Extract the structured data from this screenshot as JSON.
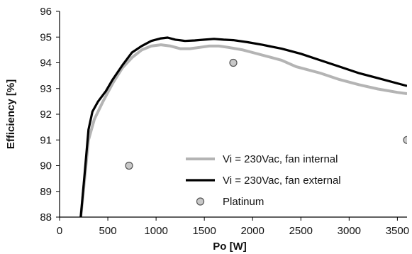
{
  "chart_data": {
    "type": "line",
    "xlabel": "Po [W]",
    "ylabel": "Efficiency [%]",
    "xlim": [
      0,
      3600
    ],
    "ylim": [
      88,
      96
    ],
    "xticks": [
      0,
      500,
      1000,
      1500,
      2000,
      2500,
      3000,
      3500
    ],
    "yticks": [
      88,
      89,
      90,
      91,
      92,
      93,
      94,
      95,
      96
    ],
    "grid": false,
    "legend_position": "bottom-center",
    "series": [
      {
        "name": "Vi = 230Vac, fan internal",
        "kind": "line",
        "color": "#b4b4b4",
        "points": [
          [
            220,
            88
          ],
          [
            260,
            89.5
          ],
          [
            300,
            91
          ],
          [
            360,
            91.8
          ],
          [
            450,
            92.5
          ],
          [
            550,
            93.2
          ],
          [
            650,
            93.8
          ],
          [
            750,
            94.2
          ],
          [
            850,
            94.5
          ],
          [
            950,
            94.65
          ],
          [
            1050,
            94.7
          ],
          [
            1150,
            94.65
          ],
          [
            1250,
            94.55
          ],
          [
            1350,
            94.55
          ],
          [
            1450,
            94.6
          ],
          [
            1550,
            94.65
          ],
          [
            1650,
            94.65
          ],
          [
            1750,
            94.6
          ],
          [
            1900,
            94.5
          ],
          [
            2000,
            94.4
          ],
          [
            2150,
            94.25
          ],
          [
            2300,
            94.1
          ],
          [
            2450,
            93.85
          ],
          [
            2550,
            93.75
          ],
          [
            2700,
            93.6
          ],
          [
            2900,
            93.35
          ],
          [
            3100,
            93.15
          ],
          [
            3300,
            92.98
          ],
          [
            3500,
            92.85
          ],
          [
            3600,
            92.8
          ]
        ]
      },
      {
        "name": "Vi = 230Vac, fan external",
        "kind": "line",
        "color": "#000000",
        "points": [
          [
            220,
            88
          ],
          [
            260,
            89.7
          ],
          [
            300,
            91.4
          ],
          [
            340,
            92.1
          ],
          [
            400,
            92.5
          ],
          [
            480,
            92.9
          ],
          [
            550,
            93.35
          ],
          [
            650,
            93.9
          ],
          [
            750,
            94.4
          ],
          [
            850,
            94.65
          ],
          [
            950,
            94.85
          ],
          [
            1050,
            94.95
          ],
          [
            1120,
            94.98
          ],
          [
            1200,
            94.9
          ],
          [
            1300,
            94.85
          ],
          [
            1400,
            94.87
          ],
          [
            1500,
            94.9
          ],
          [
            1600,
            94.93
          ],
          [
            1700,
            94.9
          ],
          [
            1800,
            94.88
          ],
          [
            1950,
            94.8
          ],
          [
            2100,
            94.7
          ],
          [
            2300,
            94.55
          ],
          [
            2500,
            94.35
          ],
          [
            2700,
            94.1
          ],
          [
            2900,
            93.85
          ],
          [
            3100,
            93.6
          ],
          [
            3300,
            93.4
          ],
          [
            3500,
            93.2
          ],
          [
            3600,
            93.1
          ]
        ]
      },
      {
        "name": "Platinum",
        "kind": "markers",
        "color": "#c8c8c8",
        "stroke": "#555555",
        "points": [
          [
            720,
            90
          ],
          [
            1800,
            94
          ],
          [
            3600,
            91
          ]
        ]
      }
    ]
  }
}
